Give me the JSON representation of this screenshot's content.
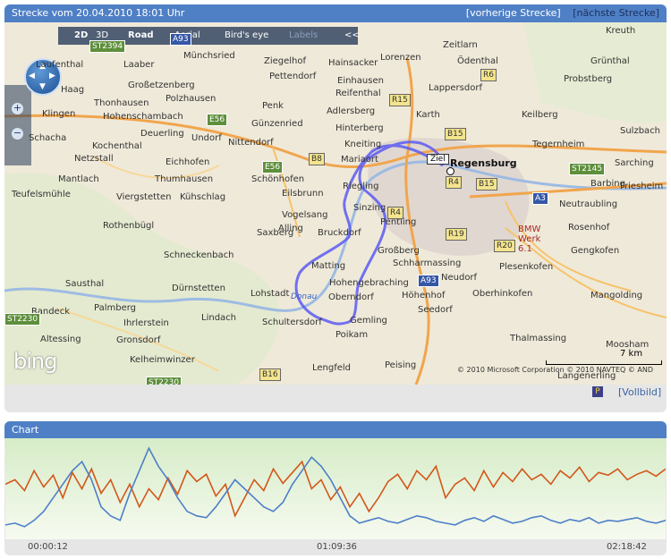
{
  "route": {
    "title": "Strecke vom 20.04.2010 18:01 Uhr",
    "prev_label": "[vorherige Strecke]",
    "next_label": "[nächste Strecke]",
    "fullscreen_label": "[Vollbild]"
  },
  "map": {
    "toolbar": {
      "view_2d": "2D",
      "view_3d": "3D",
      "road": "Road",
      "aerial": "Aerial",
      "birds_eye": "Bird's eye",
      "labels": "Labels",
      "collapse": "<<"
    },
    "bing_logo": "bing",
    "scale": "7 km",
    "copyright": "© 2010 Microsoft Corporation  © 2010 NAVTEQ  © AND",
    "destination_label": "Ziel",
    "place_labels": [
      "Münchsried",
      "Ziegelhof",
      "Hainsacker",
      "Lorenzen",
      "Zeitlarn",
      "Kreuth",
      "Laufenthal",
      "Laaber",
      "Pettendorf",
      "Einhausen",
      "Ödenthal",
      "Grünthal",
      "Haag",
      "Großetzenberg",
      "Reifenthal",
      "Lappersdorf",
      "Probstberg",
      "Thonhausen",
      "Polzhausen",
      "Penk",
      "Adlersberg",
      "Karth",
      "Keilberg",
      "Klingen",
      "Hohenschambach",
      "Günzenried",
      "Hinterberg",
      "Tegernheim",
      "Schacha",
      "Deuerling",
      "Undorf",
      "Nittendorf",
      "Kneiting",
      "Sulzbach",
      "Kochenthal",
      "Mariaort",
      "Regensburg",
      "Netzstall",
      "Eichhofen",
      "Schönhofen",
      "Sarching",
      "Mantlach",
      "Thumhausen",
      "Riegling",
      "Barbing",
      "Friesheim",
      "Teufelsmühle",
      "Eilsbrunn",
      "Sinzing",
      "Pentling",
      "Neutraubling",
      "Kühschlag",
      "Viergstetten",
      "Saxberg",
      "Vogelsang",
      "Bruckdorf",
      "Rosenhof",
      "Rothenbügl",
      "Alling",
      "Großberg",
      "Schharmassing",
      "Plesenkofen",
      "Gengkofen",
      "Schneckenbach",
      "Matting",
      "Neudorf",
      "Lohstadt",
      "Dürnstetten",
      "Hohengebraching",
      "Höhenhof",
      "Oberhinkofen",
      "Mangolding",
      "Sausthal",
      "Oberndorf",
      "Seedorf",
      "Palmberg",
      "Lindach",
      "Schultersdorf",
      "Gemling",
      "Ihrlerstein",
      "Altessing",
      "Gronsdorf",
      "Poikam",
      "Thalmassing",
      "Moosham",
      "Kelheimwinzer",
      "Lengfeld",
      "Peising",
      "Langenerling",
      "Donau",
      "BMW Werk 6.1",
      "Randeck",
      "Kelheim"
    ],
    "road_shields": [
      "ST2394",
      "A93",
      "R6",
      "E56",
      "R15",
      "B15",
      "B8",
      "E56",
      "R4",
      "B15",
      "ST2145",
      "A3",
      "R4",
      "R19",
      "R20",
      "A93",
      "ST2230",
      "B16",
      "ST2230"
    ]
  },
  "chart": {
    "title": "Chart"
  },
  "chart_data": {
    "type": "line",
    "title": "Chart",
    "x_ticks": [
      "00:00:12",
      "01:09:36",
      "02:18:42"
    ],
    "grid": false,
    "series": [
      {
        "color": "#d2571b",
        "values": [
          55,
          60,
          48,
          70,
          52,
          65,
          40,
          68,
          50,
          72,
          45,
          60,
          35,
          55,
          30,
          50,
          38,
          62,
          44,
          70,
          58,
          66,
          42,
          55,
          20,
          40,
          60,
          48,
          72,
          56,
          68,
          80,
          50,
          60,
          38,
          52,
          30,
          45,
          25,
          40,
          58,
          66,
          50,
          70,
          60,
          75,
          40,
          55,
          62,
          48,
          70,
          52,
          68,
          58,
          72,
          60,
          66,
          55,
          70,
          62,
          74,
          58,
          68,
          65,
          72,
          60,
          66,
          70,
          64,
          72
        ]
      },
      {
        "color": "#4d7fc8",
        "values": [
          10,
          12,
          8,
          15,
          25,
          40,
          55,
          70,
          80,
          60,
          30,
          20,
          15,
          45,
          70,
          95,
          75,
          60,
          40,
          25,
          20,
          18,
          30,
          45,
          60,
          50,
          40,
          30,
          25,
          35,
          55,
          70,
          85,
          75,
          60,
          40,
          20,
          12,
          15,
          18,
          14,
          12,
          16,
          20,
          18,
          14,
          12,
          10,
          15,
          18,
          14,
          20,
          16,
          12,
          14,
          18,
          20,
          15,
          12,
          16,
          14,
          18,
          12,
          15,
          14,
          16,
          18,
          14,
          12,
          15
        ]
      }
    ],
    "ylim": [
      0,
      100
    ]
  }
}
